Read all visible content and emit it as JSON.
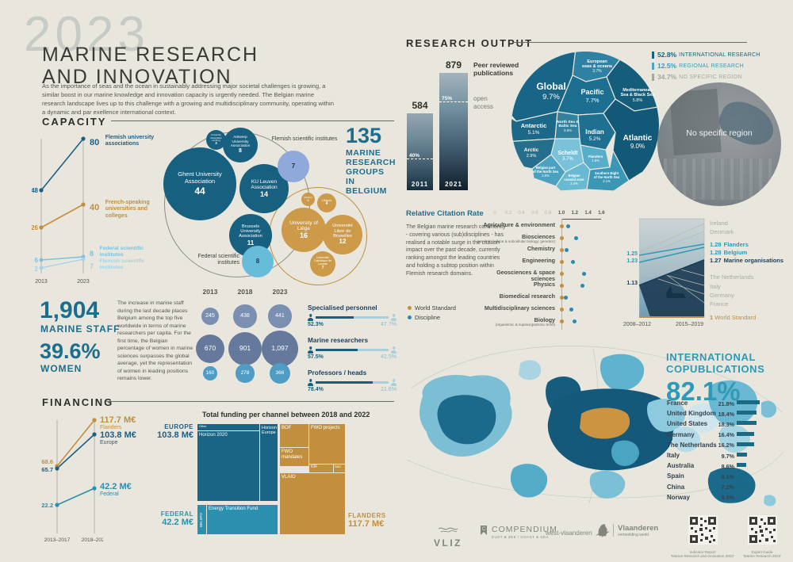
{
  "header": {
    "year": "2023",
    "title1": "MARINE RESEARCH",
    "title2": "AND INNOVATION",
    "intro": "As the importance of seas and the ocean in sustainably addressing major societal challenges is growing, a similar boost in our marine knowledge and innovation capacity is urgently needed. The Belgian marine research landscape lives up to this challenge with a growing and multidisciplinary community, operating within a dynamic and par exellence international context."
  },
  "capacity": {
    "title": "CAPACITY",
    "trend": {
      "x_labels": [
        "2013",
        "2023"
      ],
      "series": [
        {
          "label": "Flemish university associations",
          "start": "48",
          "end": "80"
        },
        {
          "label": "French-speaking universities and colleges",
          "start": "26",
          "end": "40"
        },
        {
          "label": "Federal scientific institutes",
          "start": "6",
          "end": "8"
        },
        {
          "label": "Flemish scientific institutes",
          "start": "2",
          "end": "7"
        }
      ]
    },
    "headline_value": "135",
    "headline_label": "MARINE RESEARCH GROUPS IN BELGIUM",
    "bubbles": {
      "ghent": {
        "name": "Ghent University Association",
        "value": "44"
      },
      "kuleuven": {
        "name": "KU Leuven Association",
        "value": "14"
      },
      "brussels": {
        "name": "Brussels University Association",
        "value": "11"
      },
      "antwerp": {
        "name": "Antwerp University Association",
        "value": "8"
      },
      "limburg": {
        "name": "University Association Limburg",
        "value": "3"
      },
      "flemish_sci": {
        "name": "Flemish scientific institutes",
        "value": "7"
      },
      "federal_sci": {
        "name": "Federal scientific institutes",
        "value": "8"
      },
      "liege": {
        "name": "University of Liège",
        "value": "16"
      },
      "ulb": {
        "name": "Université Libre de Bruxelles",
        "value": "12"
      },
      "uclouvain": {
        "name": "Université Catholique de Louvain",
        "value": "7"
      },
      "umons": {
        "name": "UMons",
        "value": "4"
      },
      "unamur": {
        "name": "UNamur",
        "value": "1"
      }
    }
  },
  "staff": {
    "total": "1,904",
    "total_label": "MARINE STAFF",
    "women_pct": "39.6%",
    "women_label": "WOMEN",
    "note": "The increase in marine staff during the last decade places Belgium among the top five worldwide in terms of marine researchers per capita. For the first time, the Belgian percentage of women in marine sciences surpasses the global average, yet the representation of women in leading positions remains lower.",
    "grid_years": [
      "2013",
      "2018",
      "2023"
    ],
    "grid": [
      {
        "category": "Specialised personnel",
        "values": [
          "245",
          "438",
          "441"
        ]
      },
      {
        "category": "Marine researchers",
        "values": [
          "670",
          "901",
          "1,097"
        ]
      },
      {
        "category": "Professors / heads",
        "values": [
          "160",
          "278",
          "366"
        ]
      }
    ],
    "gender_split": [
      {
        "category": "Specialised personnel",
        "male": "52.3%",
        "female": "47.7%",
        "male_val": 52.3
      },
      {
        "category": "Marine researchers",
        "male": "57.5%",
        "female": "42.5%",
        "male_val": 57.5
      },
      {
        "category": "Professors / heads",
        "male": "78.4%",
        "female": "21.6%",
        "male_val": 78.4
      }
    ]
  },
  "financing": {
    "title": "FINANCING",
    "trend": {
      "x_labels": [
        "2013–2017",
        "2018–2022"
      ],
      "series": [
        {
          "label": "Flanders",
          "start": "68.6",
          "end": "117.7 M€"
        },
        {
          "label": "Europe",
          "start": "65.7",
          "end": "103.8 M€"
        },
        {
          "label": "Federal",
          "start": "22.2",
          "end": "42.2 M€"
        }
      ]
    },
    "treemap": {
      "title": "Total funding per channel between 2018 and 2022",
      "europe_label": "EUROPE",
      "europe_amount": "103.8 M€",
      "federal_label": "FEDERAL",
      "federal_amount": "42.2 M€",
      "flanders_label": "FLANDERS",
      "flanders_amount": "117.7 M€",
      "cells": {
        "other": "Other",
        "horizon2020": "Horizon 2020",
        "horizon_europe": "Horizon Europe",
        "belspo": "BELSPO",
        "etf": "Energy Transition Fund",
        "bof": "BOF",
        "fwo_projects": "FWO projects",
        "fwo_mandates": "FWO mandates",
        "iof": "IOF",
        "sbo": "SBO",
        "vlaio": "VLAIO"
      }
    }
  },
  "research_output": {
    "title": "RESEARCH OUTPUT",
    "publications_label": "Peer reviewed publications",
    "open_access_label": "open access",
    "bars": [
      {
        "year": "2011",
        "value": "584",
        "open_access": "40%",
        "open_access_value": 40
      },
      {
        "year": "2021",
        "value": "879",
        "open_access": "75%",
        "open_access_value": 75
      }
    ],
    "region_legend": [
      {
        "pct": "52.8%",
        "label": "INTERNATIONAL RESEARCH"
      },
      {
        "pct": "12.5%",
        "label": "REGIONAL RESEARCH"
      },
      {
        "pct": "34.7%",
        "label": "NO SPECIFIC REGION"
      }
    ],
    "no_specific_region": "No specific region",
    "regions": {
      "global": {
        "lines": [
          "Global"
        ],
        "pct": "9.7%"
      },
      "european": {
        "lines": [
          "European",
          "seas & oceans"
        ],
        "pct": "3.7%"
      },
      "pacific": {
        "lines": [
          "Pacific"
        ],
        "pct": "7.7%"
      },
      "mediterranean": {
        "lines": [
          "Mediterranean",
          "Sea & Black Sea"
        ],
        "pct": "5.8%"
      },
      "antarctic": {
        "lines": [
          "Antarctic"
        ],
        "pct": "5.1%"
      },
      "northsea": {
        "lines": [
          "North Sea &",
          "Baltic Sea"
        ],
        "pct": "3.6%"
      },
      "indian": {
        "lines": [
          "Indian"
        ],
        "pct": "5.2%"
      },
      "atlantic": {
        "lines": [
          "Atlantic"
        ],
        "pct": "9.0%"
      },
      "arctic": {
        "lines": [
          "Arctic"
        ],
        "pct": "2.9%"
      },
      "scheldt": {
        "lines": [
          "Scheldt"
        ],
        "pct": "3.7%"
      },
      "belgian_north_sea": {
        "lines": [
          "Belgian part",
          "of the North Sea"
        ],
        "pct": "2.6%"
      },
      "flanders": {
        "lines": [
          "Flanders"
        ],
        "pct": "1.6%"
      },
      "coastal": {
        "lines": [
          "Belgian",
          "coastal zone"
        ],
        "pct": "2.4%"
      },
      "southern_bight": {
        "lines": [
          "Southern Bight",
          "of the North Sea"
        ],
        "pct": "2.1%"
      }
    }
  },
  "citation": {
    "title": "Relative Citation Rate",
    "note": "The Belgian marine research community - covering various (sub)disciplines - has realised a notable surge in the citation impact over the past decade, currently ranking amongst the leading countries and holding a subtop position within Flemish research domains.",
    "legend": [
      {
        "label": "World Standard"
      },
      {
        "label": "Discipline"
      }
    ],
    "axis_ticks": [
      0,
      0.2,
      0.4,
      0.6,
      0.8,
      1.0,
      1.2,
      1.4,
      1.6
    ],
    "world_value": 1.0,
    "rows": [
      {
        "label": "Agriculture & environment",
        "sub": "",
        "value": 1.1
      },
      {
        "label": "Biosciences",
        "sub": "(general; cellular & subcellular biology; genetics)",
        "value": 1.22
      },
      {
        "label": "Chemistry",
        "sub": "",
        "value": 1.08
      },
      {
        "label": "Engineering",
        "sub": "",
        "value": 1.17
      },
      {
        "label": "Geosciences & space sciences",
        "sub": "",
        "value": 1.34
      },
      {
        "label": "Physics",
        "sub": "",
        "value": 1.31
      },
      {
        "label": "Biomedical research",
        "sub": "",
        "value": 1.07
      },
      {
        "label": "Multidisciplinary sciences",
        "sub": "",
        "value": 1.15
      },
      {
        "label": "Biology",
        "sub": "(organismic & supraorganismic level)",
        "value": 1.2
      }
    ]
  },
  "citation_trend": {
    "start_values": [
      "1.25",
      "1.23",
      "1.13"
    ],
    "x_labels": [
      "2008–2012",
      "2015–2019"
    ],
    "world_standard_value": "1",
    "world_standard_label": "World Standard",
    "side_labels": [
      {
        "value": "",
        "label": "Ireland",
        "type": "other"
      },
      {
        "value": "",
        "label": "Denmark",
        "type": "other"
      },
      {
        "value": "1.28",
        "label": "Flanders",
        "type": "teal"
      },
      {
        "value": "1.28",
        "label": "Belgium",
        "type": "teal"
      },
      {
        "value": "1.27",
        "label": "Marine organisations",
        "type": "navy"
      },
      {
        "value": "",
        "label": "The Netherlands",
        "type": "other"
      },
      {
        "value": "",
        "label": "Italy",
        "type": "other"
      },
      {
        "value": "",
        "label": "Germany",
        "type": "other"
      },
      {
        "value": "",
        "label": "France",
        "type": "other"
      }
    ]
  },
  "copublications": {
    "title1": "INTERNATIONAL",
    "title2": "COPUBLICATIONS",
    "pct": "82.1%",
    "rows": [
      {
        "country": "France",
        "pct": "21.8%",
        "value": 21.8
      },
      {
        "country": "United Kingdom",
        "pct": "18.4%",
        "value": 18.4
      },
      {
        "country": "United States",
        "pct": "18.3%",
        "value": 18.3
      },
      {
        "country": "Germany",
        "pct": "16.4%",
        "value": 16.4
      },
      {
        "country": "The Netherlands",
        "pct": "16.2%",
        "value": 16.2
      },
      {
        "country": "Italy",
        "pct": "9.7%",
        "value": 9.7
      },
      {
        "country": "Australia",
        "pct": "8.6%",
        "value": 8.6
      },
      {
        "country": "Spain",
        "pct": "8.1%",
        "value": 8.1
      },
      {
        "country": "China",
        "pct": "7.2%",
        "value": 7.2
      },
      {
        "country": "Norway",
        "pct": "6.5%",
        "value": 6.5
      }
    ]
  },
  "footer": {
    "vliz": "VLIZ",
    "compendium": "COMPENDIUM",
    "compendium_sub": "KUST & ZEE  /  COAST & SEA",
    "westvl": "west-vlaanderen",
    "vlaanderen": "Vlaanderen",
    "vlaanderen_sub": "verbeelding werkt",
    "qr1_caption1": "Indicator Report",
    "qr1_caption2": "'Marine Research and Innovation 2023'",
    "qr2_caption1": "Expert Guide",
    "qr2_caption2": "'Marine Research 2023'"
  },
  "colors": {
    "petrol": "#17607f",
    "teal": "#2e9ab8",
    "gold": "#c28f3e",
    "lightblue": "#7fc0dc",
    "periwinkle": "#8fa9da",
    "slate": "#64799b",
    "navy": "#1c3e5c",
    "gray": "#a0a49c"
  },
  "chart_data": [
    {
      "type": "line",
      "title": "Capacity trend",
      "x": [
        "2013",
        "2023"
      ],
      "series": [
        {
          "name": "Flemish university associations",
          "values": [
            48,
            80
          ]
        },
        {
          "name": "French-speaking universities and colleges",
          "values": [
            26,
            40
          ]
        },
        {
          "name": "Federal scientific institutes",
          "values": [
            6,
            8
          ]
        },
        {
          "name": "Flemish scientific institutes",
          "values": [
            2,
            7
          ]
        }
      ]
    },
    {
      "type": "bubble",
      "title": "135 marine research groups in Belgium",
      "items": [
        {
          "name": "Ghent University Association",
          "value": 44
        },
        {
          "name": "KU Leuven Association",
          "value": 14
        },
        {
          "name": "Brussels University Association",
          "value": 11
        },
        {
          "name": "Antwerp University Association",
          "value": 8
        },
        {
          "name": "University Association Limburg",
          "value": 3
        },
        {
          "name": "Flemish scientific institutes",
          "value": 7
        },
        {
          "name": "Federal scientific institutes",
          "value": 8
        },
        {
          "name": "University of Liège",
          "value": 16
        },
        {
          "name": "Université Libre de Bruxelles",
          "value": 12
        },
        {
          "name": "Université Catholique de Louvain",
          "value": 7
        },
        {
          "name": "UMons",
          "value": 4
        },
        {
          "name": "UNamur",
          "value": 1
        }
      ]
    },
    {
      "type": "bubble",
      "title": "Marine staff by category",
      "categories": [
        "2013",
        "2018",
        "2023"
      ],
      "series": [
        {
          "name": "Specialised personnel",
          "values": [
            245,
            438,
            441
          ]
        },
        {
          "name": "Marine researchers",
          "values": [
            670,
            901,
            1097
          ]
        },
        {
          "name": "Professors / heads",
          "values": [
            160,
            278,
            366
          ]
        }
      ]
    },
    {
      "type": "bar",
      "title": "Gender split (% male vs female)",
      "categories": [
        "Specialised personnel",
        "Marine researchers",
        "Professors / heads"
      ],
      "series": [
        {
          "name": "male",
          "values": [
            52.3,
            57.5,
            78.4
          ]
        },
        {
          "name": "female",
          "values": [
            47.7,
            42.5,
            21.6
          ]
        }
      ]
    },
    {
      "type": "line",
      "title": "Financing (M€)",
      "x": [
        "2013–2017",
        "2018–2022"
      ],
      "series": [
        {
          "name": "Flanders",
          "values": [
            68.6,
            117.7
          ]
        },
        {
          "name": "Europe",
          "values": [
            65.7,
            103.8
          ]
        },
        {
          "name": "Federal",
          "values": [
            22.2,
            42.2
          ]
        }
      ]
    },
    {
      "type": "bar",
      "title": "Peer reviewed publications",
      "categories": [
        "2011",
        "2021"
      ],
      "values": [
        584,
        879
      ],
      "open_access_pct": [
        40,
        75
      ]
    },
    {
      "type": "pie",
      "title": "Research output by region (%)",
      "categories": [
        "Global",
        "Pacific",
        "Atlantic",
        "European seas & oceans",
        "Mediterranean Sea & Black Sea",
        "North Sea & Baltic Sea",
        "Antarctic",
        "Indian",
        "Arctic",
        "Scheldt",
        "Belgian part of the North Sea",
        "Flanders",
        "Belgian coastal zone",
        "Southern Bight of the North Sea"
      ],
      "values": [
        9.7,
        7.7,
        9.0,
        3.7,
        5.8,
        3.6,
        5.1,
        5.2,
        2.9,
        3.7,
        2.6,
        1.6,
        2.4,
        2.1
      ],
      "summary": {
        "international": 52.8,
        "regional": 12.5,
        "no_specific_region": 34.7
      }
    },
    {
      "type": "scatter",
      "title": "Relative Citation Rate",
      "xlim": [
        0,
        1.6
      ],
      "world_standard": 1.0,
      "categories": [
        "Agriculture & environment",
        "Biosciences",
        "Chemistry",
        "Engineering",
        "Geosciences & space sciences",
        "Physics",
        "Biomedical research",
        "Multidisciplinary sciences",
        "Biology"
      ],
      "values": [
        1.1,
        1.22,
        1.08,
        1.17,
        1.34,
        1.31,
        1.07,
        1.15,
        1.2
      ]
    },
    {
      "type": "line",
      "title": "Citation rate trend",
      "x": [
        "2008–2012",
        "2015–2019"
      ],
      "series": [
        {
          "name": "Flanders",
          "values": [
            1.25,
            1.28
          ]
        },
        {
          "name": "Belgium",
          "values": [
            1.23,
            1.28
          ]
        },
        {
          "name": "Marine organisations",
          "values": [
            1.13,
            1.27
          ]
        }
      ],
      "reference": {
        "name": "World Standard",
        "value": 1
      }
    },
    {
      "type": "bar",
      "title": "International copublications 82.1%",
      "categories": [
        "France",
        "United Kingdom",
        "United States",
        "Germany",
        "The Netherlands",
        "Italy",
        "Australia",
        "Spain",
        "China",
        "Norway"
      ],
      "values": [
        21.8,
        18.4,
        18.3,
        16.4,
        16.2,
        9.7,
        8.6,
        8.1,
        7.2,
        6.5
      ]
    }
  ]
}
